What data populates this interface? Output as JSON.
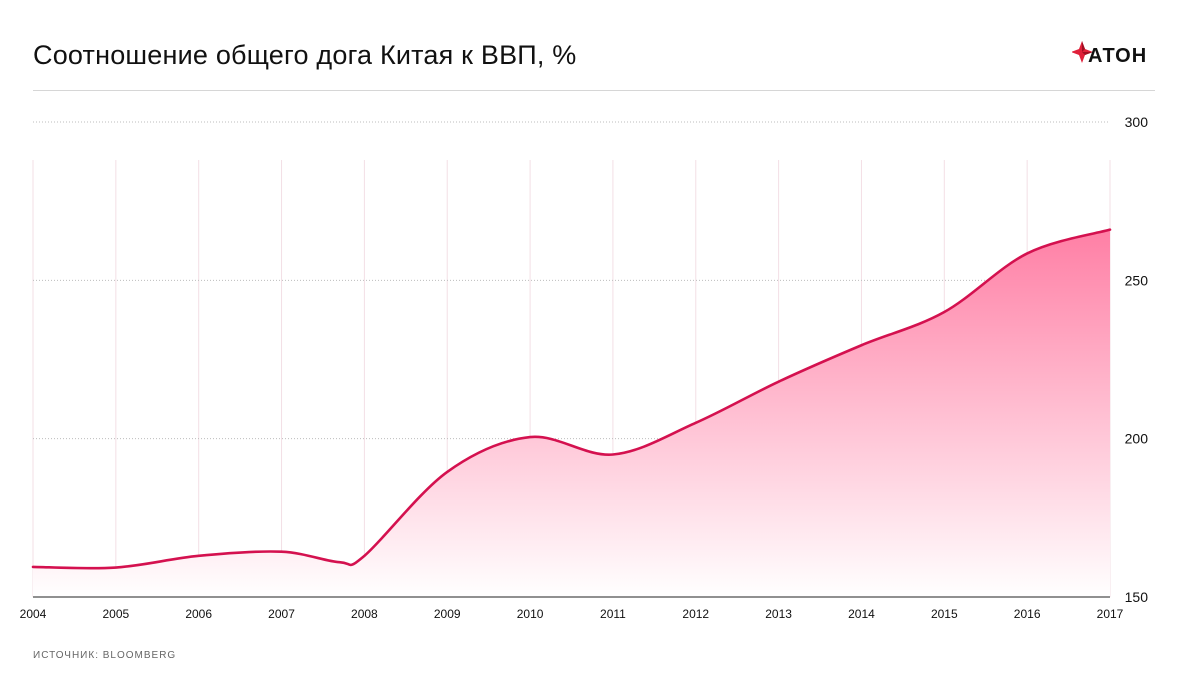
{
  "header": {
    "title": "Соотношение общего дога Китая к ВВП, %",
    "logo_text": "АТОН"
  },
  "source": "ИСТОЧНИК:  BLOOMBERG",
  "colors": {
    "line": "#d4114f",
    "fill_top": "#ff7fa5",
    "fill_bottom": "#ffffff",
    "grid": "#bdbdbd",
    "logo_red": "#e0203a"
  },
  "chart_data": {
    "type": "area",
    "title": "Соотношение общего дога Китая к ВВП, %",
    "xlabel": "",
    "ylabel": "",
    "categories": [
      "2004",
      "2005",
      "2006",
      "2007",
      "2008",
      "2009",
      "2010",
      "2011",
      "2012",
      "2013",
      "2014",
      "2015",
      "2016",
      "2017"
    ],
    "x_ticks": [
      "2004",
      "2005",
      "2006",
      "2007",
      "2008",
      "2009",
      "2010",
      "2011",
      "2012",
      "2013",
      "2014",
      "2015",
      "2016",
      "2017"
    ],
    "x_tick_label_positions": "bottom",
    "points": [
      {
        "x": 2004.0,
        "y": 159.5
      },
      {
        "x": 2005.0,
        "y": 159.3
      },
      {
        "x": 2006.0,
        "y": 163.0
      },
      {
        "x": 2007.0,
        "y": 164.3
      },
      {
        "x": 2007.7,
        "y": 161.0
      },
      {
        "x": 2008.0,
        "y": 163.0
      },
      {
        "x": 2009.0,
        "y": 189.5
      },
      {
        "x": 2010.0,
        "y": 200.5
      },
      {
        "x": 2011.0,
        "y": 195.0
      },
      {
        "x": 2012.0,
        "y": 205.0
      },
      {
        "x": 2013.0,
        "y": 218.0
      },
      {
        "x": 2014.0,
        "y": 229.5
      },
      {
        "x": 2015.0,
        "y": 240.0
      },
      {
        "x": 2016.0,
        "y": 258.5
      },
      {
        "x": 2017.0,
        "y": 266.0
      }
    ],
    "y_ticks": [
      "150",
      "200",
      "250",
      "300"
    ],
    "xlim": [
      2004,
      2017
    ],
    "ylim": [
      150,
      300
    ],
    "grid": true,
    "y_axis_side": "right"
  }
}
